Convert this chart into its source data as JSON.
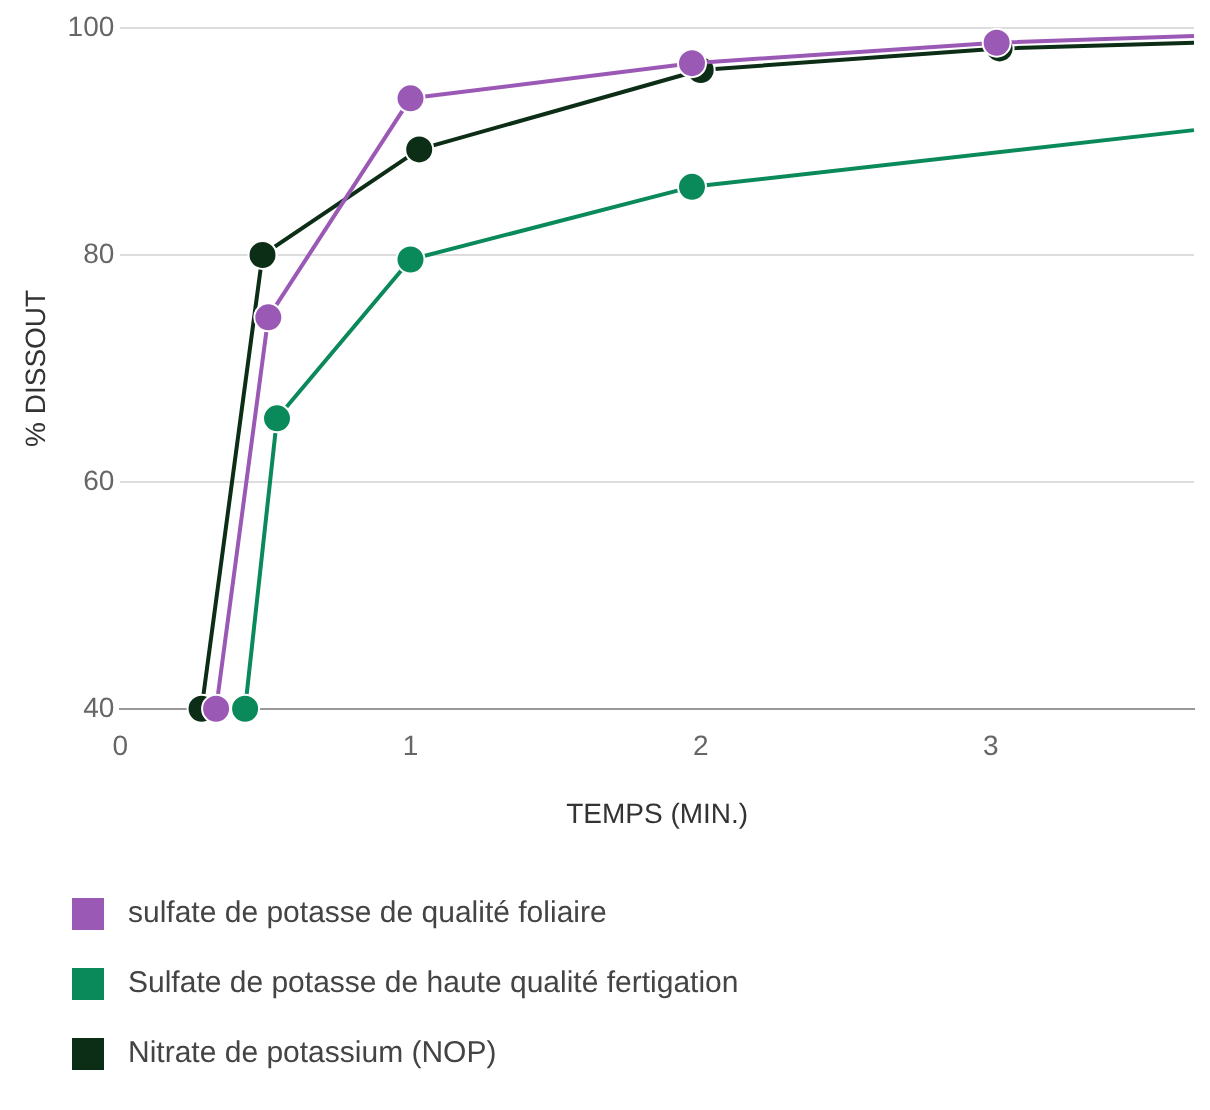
{
  "chart_data": {
    "type": "line",
    "xlabel": "TEMPS (MIN.)",
    "ylabel": "% DISSOUT",
    "xlim": [
      0,
      3.7
    ],
    "xticks": [
      0,
      1,
      2,
      3
    ],
    "ylim": [
      40,
      100
    ],
    "yticks": [
      40,
      60,
      80,
      100
    ],
    "grid": "y",
    "legend": "bottom",
    "marker": "circle",
    "line_style": "solid",
    "series": [
      {
        "name": "sulfate de potasse de qualité foliaire",
        "color": "#9b59b6",
        "x": [
          0.33,
          0.51,
          1.0,
          1.97,
          3.02,
          3.7
        ],
        "values": [
          40,
          74.5,
          93.8,
          96.9,
          98.7,
          99.3
        ]
      },
      {
        "name": "Sulfate de potasse de haute qualité fertigation",
        "color": "#0a8a5a",
        "x": [
          0.43,
          0.54,
          1.0,
          1.97,
          3.7
        ],
        "values": [
          40,
          65.6,
          79.6,
          86,
          91
        ]
      },
      {
        "name": "Nitrate de potassium (NOP)",
        "color": "#0d2e16",
        "x": [
          0.28,
          0.49,
          1.03,
          2.0,
          3.03,
          3.7
        ],
        "values": [
          40,
          80,
          89.3,
          96.3,
          98.2,
          98.7
        ]
      }
    ]
  }
}
